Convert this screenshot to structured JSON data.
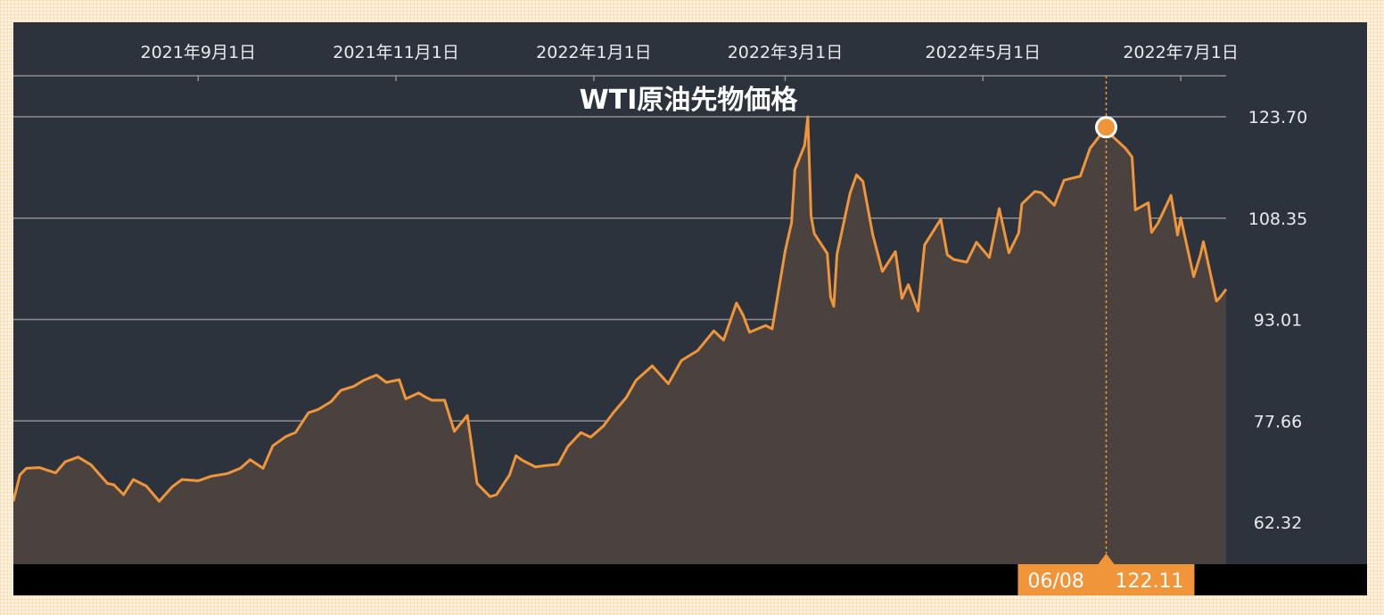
{
  "chart_data": {
    "type": "area",
    "title": "WTI原油先物価格",
    "xlabel": "",
    "ylabel": "",
    "x_tick_labels": [
      "2021年9月1日",
      "2021年11月1日",
      "2022年1月1日",
      "2022年3月1日",
      "2022年5月1日",
      "2022年7月1日"
    ],
    "y_ticks": [
      62.32,
      77.66,
      93.01,
      108.35,
      123.7
    ],
    "y_tick_labels": [
      "62.32",
      "77.66",
      "93.01",
      "108.35",
      "123.70"
    ],
    "ylim": [
      56.3,
      130.7
    ],
    "x_range": [
      "2021-07-06",
      "2022-07-15"
    ],
    "grid": true,
    "colors": {
      "line": "#f0953a",
      "area": "#4a423f",
      "background": "#2c333d",
      "grid": "#8e8f90",
      "highlight": "#f0953a"
    },
    "highlight": {
      "date": "2022-06-08",
      "date_label": "06/08",
      "value": 122.11,
      "value_label": "122.11"
    },
    "series": [
      {
        "values": [
          [
            "2021-07-06",
            65.5
          ],
          [
            "2021-07-08",
            69.5
          ],
          [
            "2021-07-10",
            70.5
          ],
          [
            "2021-07-14",
            70.6
          ],
          [
            "2021-07-19",
            69.8
          ],
          [
            "2021-07-22",
            71.5
          ],
          [
            "2021-07-26",
            72.2
          ],
          [
            "2021-07-30",
            71.0
          ],
          [
            "2021-08-04",
            68.2
          ],
          [
            "2021-08-06",
            68.0
          ],
          [
            "2021-08-09",
            66.5
          ],
          [
            "2021-08-12",
            68.8
          ],
          [
            "2021-08-16",
            67.8
          ],
          [
            "2021-08-20",
            65.5
          ],
          [
            "2021-08-24",
            67.7
          ],
          [
            "2021-08-27",
            68.8
          ],
          [
            "2021-09-01",
            68.6
          ],
          [
            "2021-09-05",
            69.3
          ],
          [
            "2021-09-10",
            69.7
          ],
          [
            "2021-09-14",
            70.5
          ],
          [
            "2021-09-17",
            71.8
          ],
          [
            "2021-09-21",
            70.5
          ],
          [
            "2021-09-24",
            73.9
          ],
          [
            "2021-09-28",
            75.3
          ],
          [
            "2021-10-01",
            75.9
          ],
          [
            "2021-10-05",
            78.9
          ],
          [
            "2021-10-08",
            79.4
          ],
          [
            "2021-10-12",
            80.6
          ],
          [
            "2021-10-15",
            82.3
          ],
          [
            "2021-10-19",
            82.9
          ],
          [
            "2021-10-22",
            83.8
          ],
          [
            "2021-10-26",
            84.6
          ],
          [
            "2021-10-29",
            83.5
          ],
          [
            "2021-11-02",
            83.9
          ],
          [
            "2021-11-04",
            81.0
          ],
          [
            "2021-11-08",
            81.9
          ],
          [
            "2021-11-10",
            81.3
          ],
          [
            "2021-11-12",
            80.8
          ],
          [
            "2021-11-16",
            80.8
          ],
          [
            "2021-11-19",
            76.1
          ],
          [
            "2021-11-23",
            78.5
          ],
          [
            "2021-11-26",
            68.2
          ],
          [
            "2021-11-30",
            66.2
          ],
          [
            "2021-12-02",
            66.5
          ],
          [
            "2021-12-06",
            69.5
          ],
          [
            "2021-12-08",
            72.4
          ],
          [
            "2021-12-10",
            71.7
          ],
          [
            "2021-12-14",
            70.7
          ],
          [
            "2021-12-17",
            70.9
          ],
          [
            "2021-12-21",
            71.1
          ],
          [
            "2021-12-24",
            73.8
          ],
          [
            "2021-12-28",
            75.9
          ],
          [
            "2021-12-31",
            75.2
          ],
          [
            "2022-01-04",
            76.9
          ],
          [
            "2022-01-07",
            78.9
          ],
          [
            "2022-01-11",
            81.2
          ],
          [
            "2022-01-14",
            83.8
          ],
          [
            "2022-01-19",
            86.0
          ],
          [
            "2022-01-24",
            83.3
          ],
          [
            "2022-01-28",
            86.8
          ],
          [
            "2022-02-02",
            88.3
          ],
          [
            "2022-02-07",
            91.3
          ],
          [
            "2022-02-10",
            89.9
          ],
          [
            "2022-02-14",
            95.5
          ],
          [
            "2022-02-16",
            93.7
          ],
          [
            "2022-02-18",
            91.1
          ],
          [
            "2022-02-23",
            92.1
          ],
          [
            "2022-02-25",
            91.6
          ],
          [
            "2022-03-01",
            103.4
          ],
          [
            "2022-03-03",
            107.7
          ],
          [
            "2022-03-04",
            115.7
          ],
          [
            "2022-03-07",
            119.4
          ],
          [
            "2022-03-08",
            123.7
          ],
          [
            "2022-03-09",
            108.7
          ],
          [
            "2022-03-10",
            106.0
          ],
          [
            "2022-03-14",
            103.0
          ],
          [
            "2022-03-15",
            96.4
          ],
          [
            "2022-03-16",
            95.0
          ],
          [
            "2022-03-17",
            102.9
          ],
          [
            "2022-03-21",
            112.1
          ],
          [
            "2022-03-23",
            114.9
          ],
          [
            "2022-03-25",
            113.9
          ],
          [
            "2022-03-28",
            105.9
          ],
          [
            "2022-03-31",
            100.3
          ],
          [
            "2022-04-04",
            103.3
          ],
          [
            "2022-04-06",
            96.2
          ],
          [
            "2022-04-08",
            98.3
          ],
          [
            "2022-04-11",
            94.3
          ],
          [
            "2022-04-13",
            104.3
          ],
          [
            "2022-04-18",
            108.2
          ],
          [
            "2022-04-20",
            102.8
          ],
          [
            "2022-04-22",
            102.1
          ],
          [
            "2022-04-26",
            101.7
          ],
          [
            "2022-04-29",
            104.7
          ],
          [
            "2022-05-03",
            102.4
          ],
          [
            "2022-05-06",
            109.8
          ],
          [
            "2022-05-09",
            103.1
          ],
          [
            "2022-05-12",
            106.1
          ],
          [
            "2022-05-13",
            110.5
          ],
          [
            "2022-05-17",
            112.4
          ],
          [
            "2022-05-19",
            112.2
          ],
          [
            "2022-05-23",
            110.3
          ],
          [
            "2022-05-26",
            114.1
          ],
          [
            "2022-05-31",
            114.7
          ],
          [
            "2022-06-03",
            118.9
          ],
          [
            "2022-06-08",
            122.1
          ],
          [
            "2022-06-10",
            120.7
          ],
          [
            "2022-06-14",
            118.9
          ],
          [
            "2022-06-16",
            117.6
          ],
          [
            "2022-06-17",
            109.6
          ],
          [
            "2022-06-21",
            110.7
          ],
          [
            "2022-06-22",
            106.2
          ],
          [
            "2022-06-24",
            107.6
          ],
          [
            "2022-06-28",
            111.8
          ],
          [
            "2022-06-30",
            105.8
          ],
          [
            "2022-07-01",
            108.4
          ],
          [
            "2022-07-05",
            99.5
          ],
          [
            "2022-07-07",
            102.7
          ],
          [
            "2022-07-08",
            104.8
          ],
          [
            "2022-07-12",
            95.8
          ],
          [
            "2022-07-13",
            96.3
          ],
          [
            "2022-07-15",
            97.6
          ]
        ]
      }
    ]
  }
}
